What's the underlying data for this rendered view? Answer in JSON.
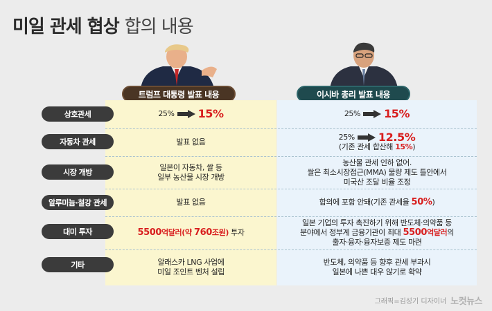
{
  "title": {
    "main": "미일 관세 협상",
    "sub": "합의 내용"
  },
  "headers": {
    "left": "트럼프 대통령 발표 내용",
    "right": "이시바 총리 발표 내용"
  },
  "rows": [
    {
      "label": "상호관세",
      "left": {
        "from": "25%",
        "to": "15%"
      },
      "right": {
        "from": "25%",
        "to": "15%"
      }
    },
    {
      "label": "자동차 관세",
      "left": {
        "text": "발표 없음"
      },
      "right": {
        "from": "25%",
        "to": "12.5%",
        "note_a": "(기존 관세 합산해 ",
        "note_b": "15%",
        "note_c": ")"
      }
    },
    {
      "label": "시장 개방",
      "left": {
        "line1": "일본이 자동차, 쌀 등",
        "line2": "일부 농산물 시장 개방"
      },
      "right": {
        "line1": "농산물 관세 인하 없어.",
        "line2": "쌀은 최소시장접근(MMA) 물량 제도 틀안에서",
        "line3": "미국산 조달 비율 조정"
      }
    },
    {
      "label": "알루미늄·철강 관세",
      "left": {
        "text": "발표 없음"
      },
      "right": {
        "text_a": "합의에 포함 안돼(기존 관세율 ",
        "text_b": "50%",
        "text_c": ")"
      }
    },
    {
      "label": "대미 투자",
      "left": {
        "a": "5500",
        "b": "억달러(약 ",
        "c": "760",
        "d": "조원)",
        "e": " 투자"
      },
      "right": {
        "line1": "일본 기업의 투자 촉진하기 위해 반도체·의약품 등",
        "line2a": "분야에서 정부계 금융기관이 최대 ",
        "line2b": "5500",
        "line2c": "억달러",
        "line2d": "의",
        "line3": "출자·융자·융자보증 제도 마련"
      }
    },
    {
      "label": "기타",
      "left": {
        "line1": "알래스카 LNG 사업에",
        "line2": "미일 조인트 벤처 설립"
      },
      "right": {
        "line1": "반도체, 의약품 등 향후 관세 부과시",
        "line2": "일본에 나쁜 대우 않기로 확약"
      }
    }
  ],
  "credit": {
    "text": "그래픽=김성기 디자이너",
    "logo": "노컷뉴스"
  },
  "colors": {
    "accent_red": "#d81e1e",
    "left_bg": "#fbf6cf",
    "right_bg": "#eaf3fb",
    "left_header": "#4a3524",
    "right_header": "#1f4a4e",
    "label_bg": "#3b3b3b"
  }
}
